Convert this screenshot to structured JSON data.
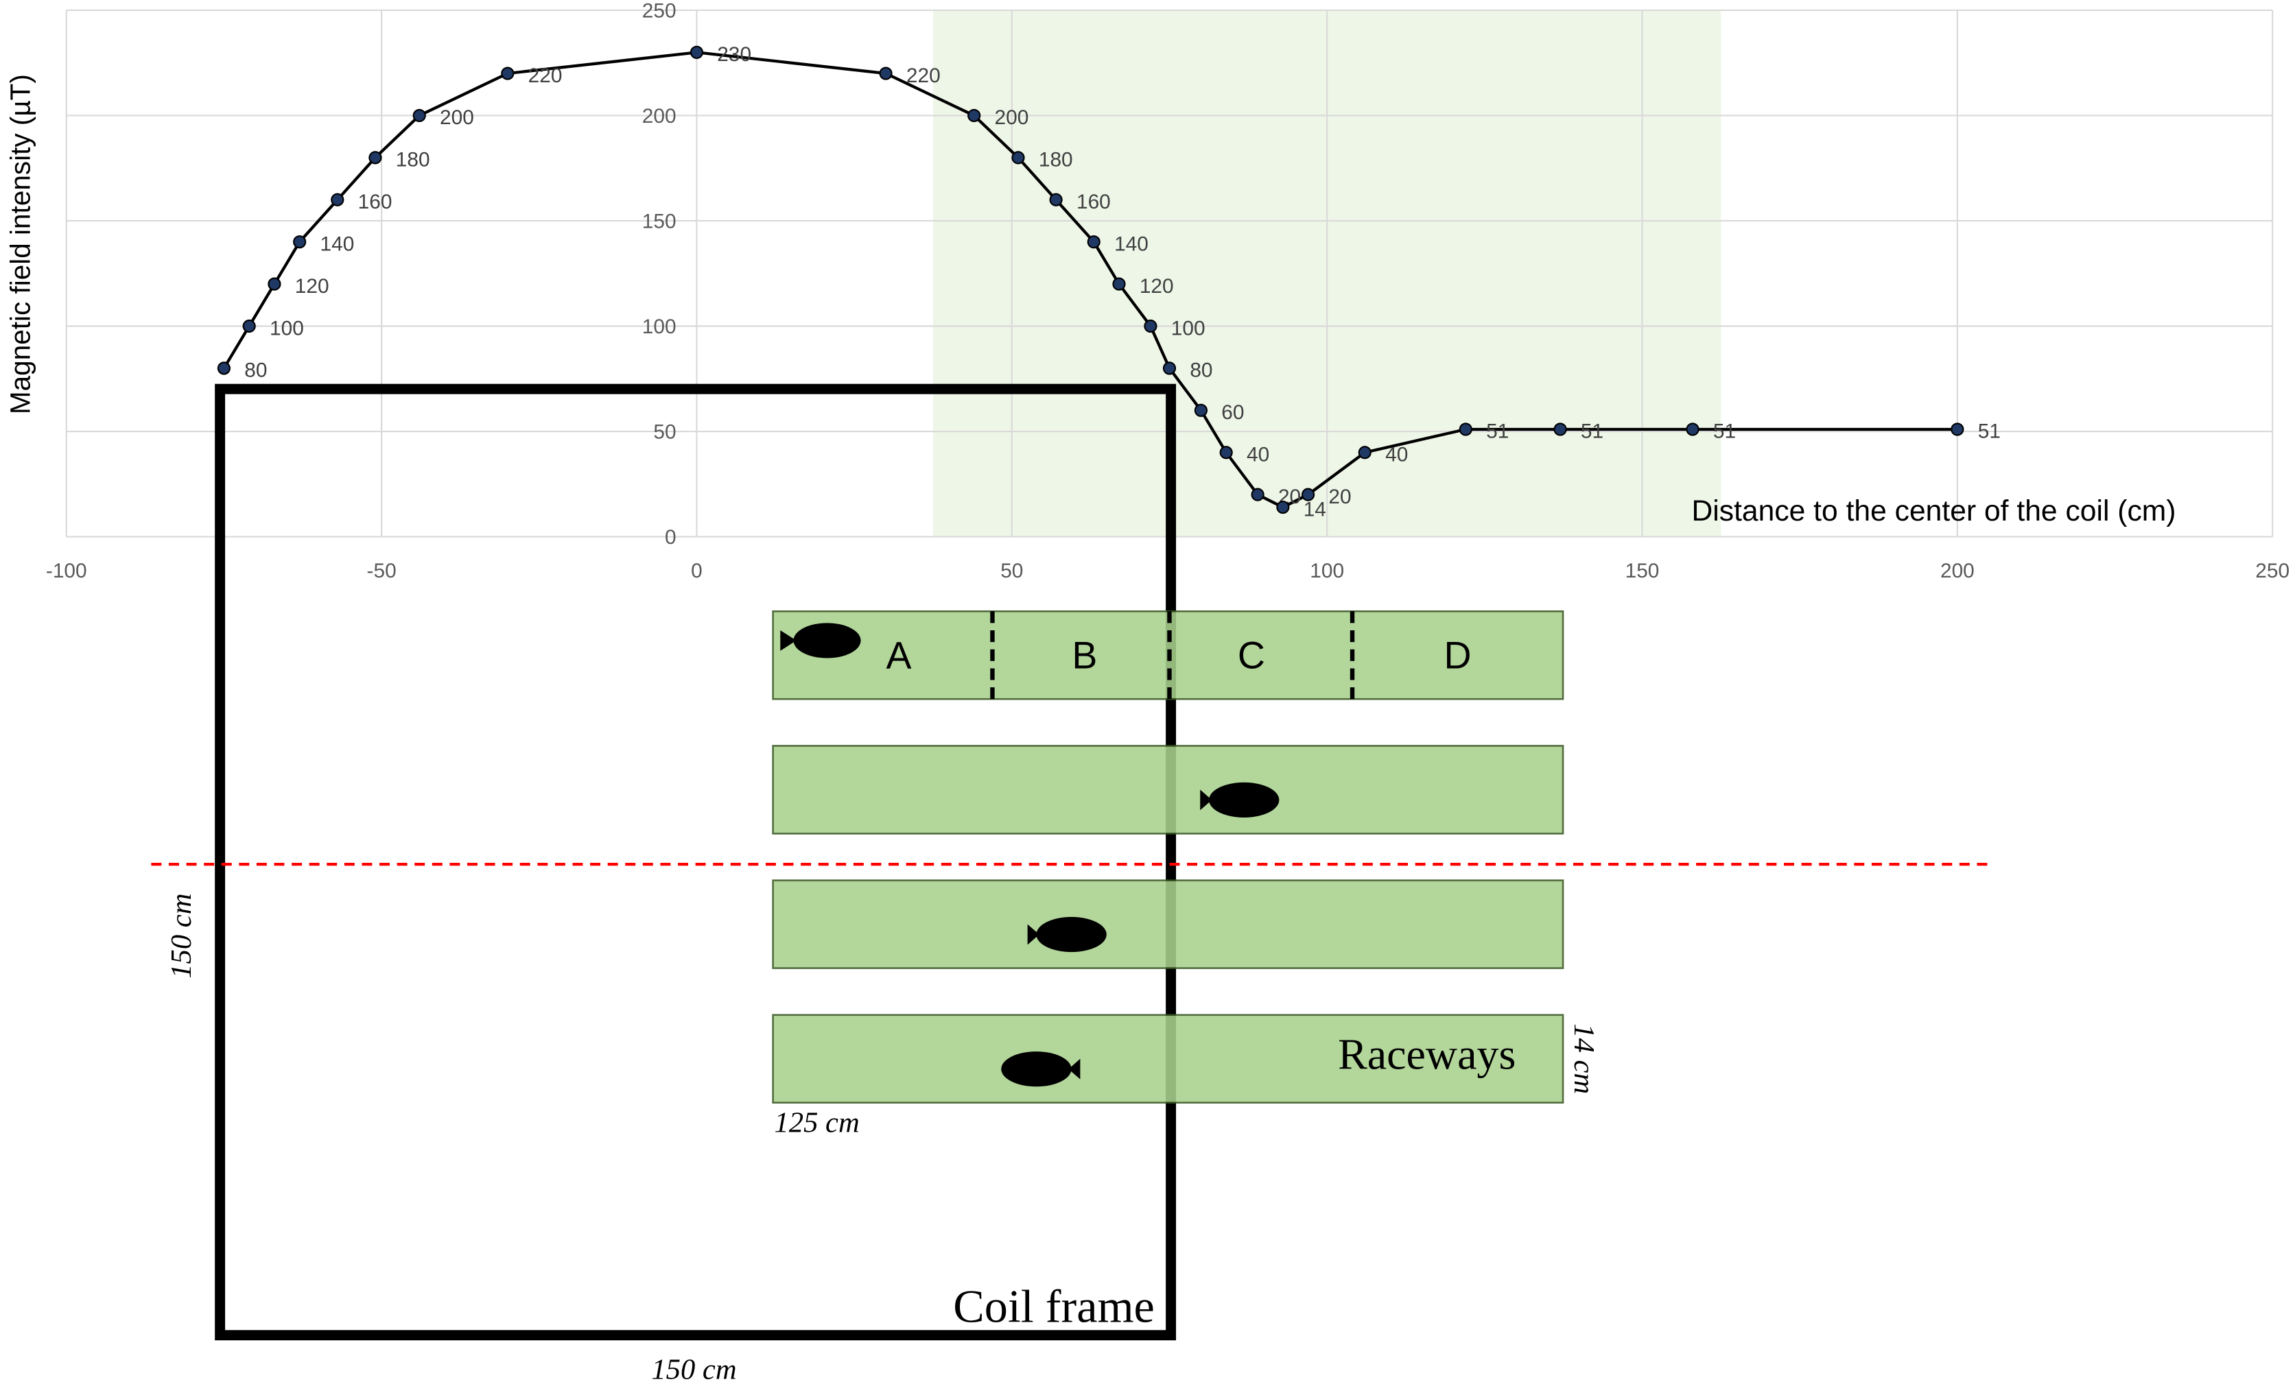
{
  "chart_data": {
    "type": "line",
    "y_label": "Magnetic field intensity (µT)",
    "x_label": "Distance to the center of the coil (cm)",
    "x": [
      -75,
      -71,
      -67,
      -63,
      -57,
      -51,
      -44,
      -30,
      0,
      30,
      44,
      51,
      57,
      63,
      67,
      72,
      75,
      80,
      84,
      89,
      93,
      97,
      106,
      122,
      137,
      158,
      200
    ],
    "values": [
      80,
      100,
      120,
      140,
      160,
      180,
      200,
      220,
      230,
      220,
      200,
      180,
      160,
      140,
      120,
      100,
      80,
      60,
      40,
      20,
      14,
      20,
      40,
      51,
      51,
      51,
      51
    ],
    "color": "#000000",
    "marker_color": "#1f3864",
    "xlim": [
      -100,
      250
    ],
    "xticks": [
      -100,
      -50,
      0,
      50,
      100,
      150,
      200,
      250
    ],
    "ylim": [
      0,
      250
    ],
    "yticks": [
      0,
      50,
      100,
      150,
      200,
      250
    ],
    "grid": true,
    "highlight_xrange": [
      37.5,
      162.5
    ],
    "highlight_color": "#eef6e8"
  },
  "diagram": {
    "coil_label": "Coil frame",
    "coil_width": "150 cm",
    "coil_height": "150 cm",
    "raceway_label": "Raceways",
    "raceway_length": "125 cm",
    "raceway_width": "14 cm",
    "sections": [
      "A",
      "B",
      "C",
      "D"
    ]
  }
}
